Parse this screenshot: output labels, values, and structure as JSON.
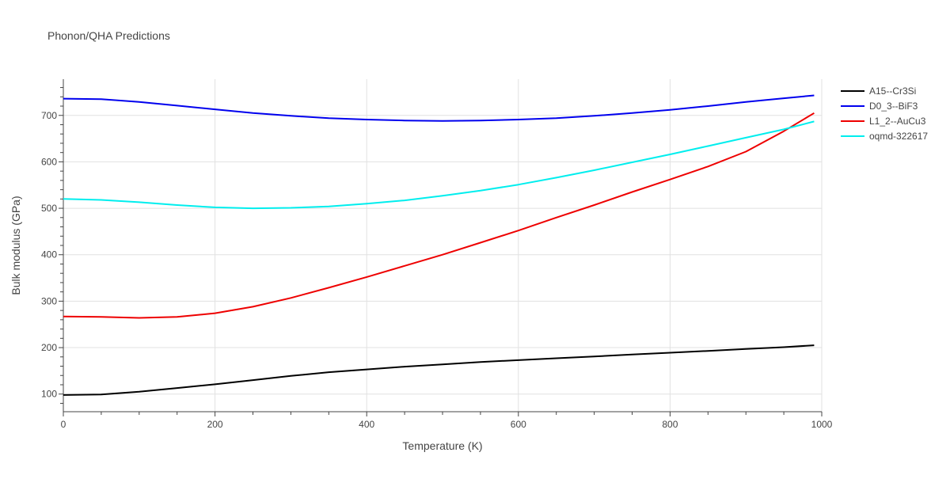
{
  "chart_data": {
    "type": "line",
    "title": "Phonon/QHA Predictions",
    "xlabel": "Temperature (K)",
    "ylabel": "Bulk modulus (GPa)",
    "xlim": [
      0,
      1000
    ],
    "ylim": [
      62,
      778
    ],
    "x_ticks": [
      0,
      200,
      400,
      600,
      800,
      1000
    ],
    "y_ticks": [
      100,
      200,
      300,
      400,
      500,
      600,
      700
    ],
    "grid": true,
    "legend_position": "top-right",
    "series": [
      {
        "name": "A15--Cr3Si",
        "color": "#000000",
        "x": [
          0,
          50,
          100,
          150,
          200,
          250,
          300,
          350,
          400,
          450,
          500,
          550,
          600,
          650,
          700,
          750,
          800,
          850,
          900,
          950,
          990
        ],
        "y": [
          98,
          99,
          105,
          113,
          121,
          130,
          139,
          147,
          153,
          159,
          164,
          169,
          173,
          177,
          181,
          185,
          189,
          193,
          197,
          201,
          205
        ]
      },
      {
        "name": "D0_3--BiF3",
        "color": "#0000ee",
        "x": [
          0,
          50,
          100,
          150,
          200,
          250,
          300,
          350,
          400,
          450,
          500,
          550,
          600,
          650,
          700,
          750,
          800,
          850,
          900,
          950,
          990
        ],
        "y": [
          736,
          735,
          729,
          721,
          713,
          705,
          699,
          694,
          691,
          689,
          688,
          689,
          691,
          694,
          699,
          705,
          712,
          720,
          729,
          737,
          743
        ]
      },
      {
        "name": "L1_2--AuCu3",
        "color": "#ee0000",
        "x": [
          0,
          50,
          100,
          150,
          200,
          250,
          300,
          350,
          400,
          450,
          500,
          550,
          600,
          650,
          700,
          750,
          800,
          850,
          900,
          950,
          990
        ],
        "y": [
          267,
          266,
          264,
          266,
          274,
          288,
          307,
          329,
          352,
          376,
          400,
          426,
          452,
          480,
          507,
          535,
          562,
          590,
          622,
          666,
          705
        ]
      },
      {
        "name": "oqmd-322617",
        "color": "#00eeee",
        "x": [
          0,
          50,
          100,
          150,
          200,
          250,
          300,
          350,
          400,
          450,
          500,
          550,
          600,
          650,
          700,
          750,
          800,
          850,
          900,
          950,
          990
        ],
        "y": [
          520,
          518,
          513,
          507,
          502,
          500,
          501,
          504,
          510,
          517,
          527,
          538,
          551,
          566,
          582,
          599,
          616,
          634,
          652,
          670,
          687
        ]
      }
    ]
  }
}
